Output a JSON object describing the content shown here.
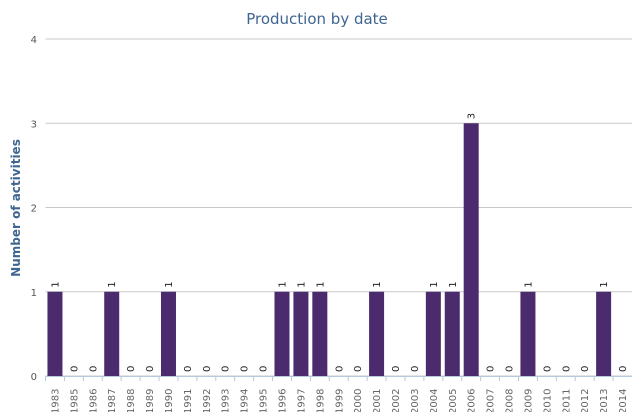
{
  "chart_data": {
    "type": "bar",
    "title": "Production by date",
    "xlabel": "",
    "ylabel": "Number of activities",
    "ylim": [
      0,
      4
    ],
    "yticks": [
      "0",
      "1",
      "2",
      "3",
      "4"
    ],
    "grid": true,
    "bar_color": "#4b2a6e",
    "categories": [
      "1983",
      "1985",
      "1986",
      "1987",
      "1988",
      "1989",
      "1990",
      "1991",
      "1992",
      "1993",
      "1994",
      "1995",
      "1996",
      "1997",
      "1998",
      "1999",
      "2000",
      "2001",
      "2002",
      "2003",
      "2004",
      "2005",
      "2006",
      "2007",
      "2008",
      "2009",
      "2010",
      "2011",
      "2012",
      "2013",
      "2014"
    ],
    "values": [
      1,
      0,
      0,
      1,
      0,
      0,
      1,
      0,
      0,
      0,
      0,
      0,
      1,
      1,
      1,
      0,
      0,
      1,
      0,
      0,
      1,
      1,
      3,
      0,
      0,
      1,
      0,
      0,
      0,
      1,
      0
    ]
  }
}
